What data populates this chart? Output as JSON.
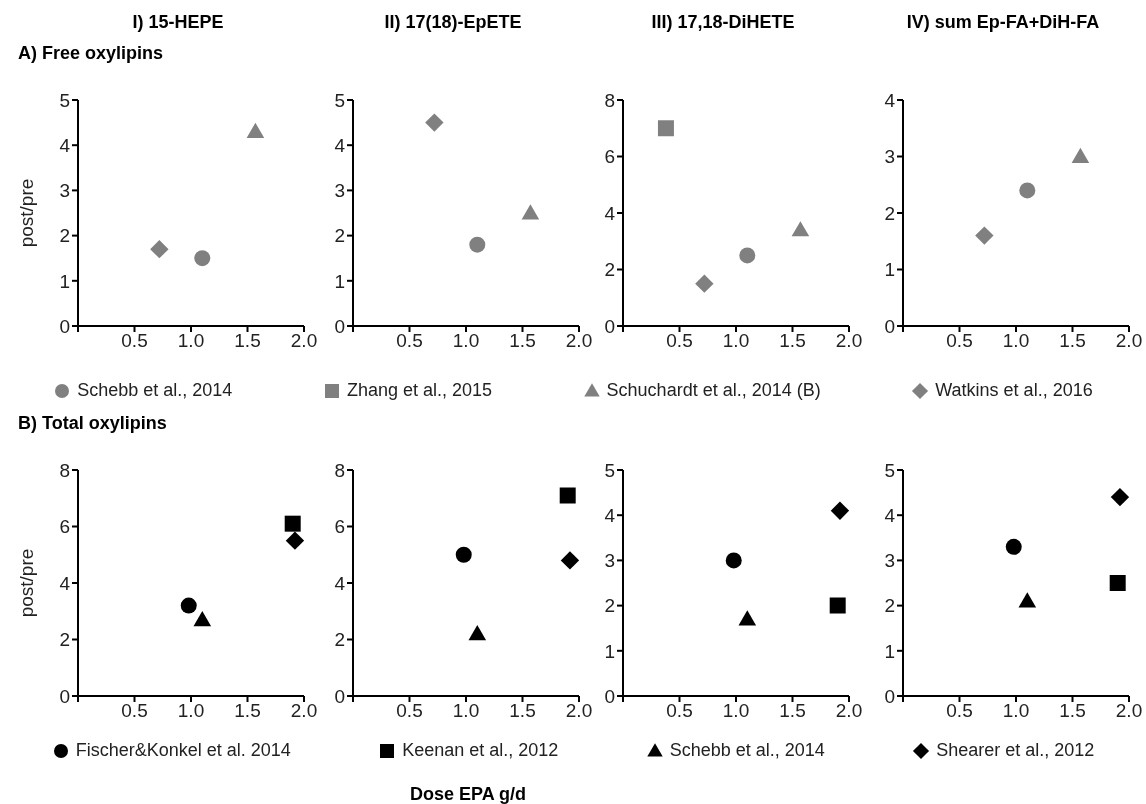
{
  "chart_data": [
    {
      "type": "scatter",
      "title": "I) 15-HEPE",
      "subtitle": "A) Free oxylipins",
      "ylabel": "post/pre",
      "xlim": [
        0,
        2
      ],
      "xticks": [
        {
          "value": 0,
          "label": null
        },
        {
          "value": 0.5,
          "label": "0.5"
        },
        {
          "value": 1,
          "label": "1.0"
        },
        {
          "value": 1.5,
          "label": "1.5"
        },
        {
          "value": 2,
          "label": "2.0"
        }
      ],
      "ylim": [
        0,
        5
      ],
      "yticks": [
        0,
        1,
        2,
        3,
        4,
        5
      ],
      "series": [
        {
          "color": "#808080",
          "marker": "circle",
          "x": [
            1.1
          ],
          "values": [
            1.5
          ]
        },
        {
          "color": "#808080",
          "marker": "triangle",
          "x": [
            1.57
          ],
          "values": [
            4.3
          ]
        },
        {
          "color": "#808080",
          "marker": "diamond",
          "x": [
            0.72
          ],
          "values": [
            1.7
          ]
        }
      ]
    },
    {
      "type": "scatter",
      "title": "II) 17(18)-EpETE",
      "xlim": [
        0,
        2
      ],
      "xticks": [
        {
          "value": 0,
          "label": null
        },
        {
          "value": 0.5,
          "label": "0.5"
        },
        {
          "value": 1,
          "label": "1.0"
        },
        {
          "value": 1.5,
          "label": "1.5"
        },
        {
          "value": 2,
          "label": "2.0"
        }
      ],
      "ylim": [
        0,
        5
      ],
      "yticks": [
        0,
        1,
        2,
        3,
        4,
        5
      ],
      "series": [
        {
          "color": "#808080",
          "marker": "circle",
          "x": [
            1.1
          ],
          "values": [
            1.8
          ]
        },
        {
          "color": "#808080",
          "marker": "triangle",
          "x": [
            1.57
          ],
          "values": [
            2.5
          ]
        },
        {
          "color": "#808080",
          "marker": "diamond",
          "x": [
            0.72
          ],
          "values": [
            4.5
          ]
        }
      ]
    },
    {
      "type": "scatter",
      "title": "III) 17,18-DiHETE",
      "legend": "bottom",
      "xlim": [
        0,
        2
      ],
      "xticks": [
        {
          "value": 0,
          "label": null
        },
        {
          "value": 0.5,
          "label": "0.5"
        },
        {
          "value": 1,
          "label": "1.0"
        },
        {
          "value": 1.5,
          "label": "1.5"
        },
        {
          "value": 2,
          "label": "2.0"
        }
      ],
      "ylim": [
        0,
        8
      ],
      "yticks": [
        0,
        2,
        4,
        6,
        8
      ],
      "series": [
        {
          "name": "Schebb et al., 2014",
          "color": "#808080",
          "marker": "circle",
          "x": [
            1.1
          ],
          "values": [
            2.5
          ]
        },
        {
          "name": "Zhang et al., 2015",
          "color": "#808080",
          "marker": "square",
          "x": [
            0.38
          ],
          "values": [
            7.0
          ]
        },
        {
          "name": "Schuchardt et al., 2014 (B)",
          "color": "#808080",
          "marker": "triangle",
          "x": [
            1.57
          ],
          "values": [
            3.4
          ]
        },
        {
          "name": "Watkins et al., 2016",
          "color": "#808080",
          "marker": "diamond",
          "x": [
            0.72
          ],
          "values": [
            1.5
          ]
        }
      ]
    },
    {
      "type": "scatter",
      "title": "IV) sum Ep-FA+DiH-FA",
      "xlim": [
        0,
        2
      ],
      "xticks": [
        {
          "value": 0,
          "label": null
        },
        {
          "value": 0.5,
          "label": "0.5"
        },
        {
          "value": 1,
          "label": "1.0"
        },
        {
          "value": 1.5,
          "label": "1.5"
        },
        {
          "value": 2,
          "label": "2.0"
        }
      ],
      "ylim": [
        0,
        4
      ],
      "yticks": [
        0,
        1,
        2,
        3,
        4
      ],
      "series": [
        {
          "color": "#808080",
          "marker": "circle",
          "x": [
            1.1
          ],
          "values": [
            2.4
          ]
        },
        {
          "color": "#808080",
          "marker": "triangle",
          "x": [
            1.57
          ],
          "values": [
            3.0
          ]
        },
        {
          "color": "#808080",
          "marker": "diamond",
          "x": [
            0.72
          ],
          "values": [
            1.6
          ]
        }
      ]
    },
    {
      "type": "scatter",
      "subtitle": "B) Total oxylipins",
      "ylabel": "post/pre",
      "legend": "bottom",
      "xlim": [
        0,
        2
      ],
      "xticks": [
        {
          "value": 0,
          "label": null
        },
        {
          "value": 0.5,
          "label": "0.5"
        },
        {
          "value": 1,
          "label": "1.0"
        },
        {
          "value": 1.5,
          "label": "1.5"
        },
        {
          "value": 2,
          "label": "2.0"
        }
      ],
      "ylim": [
        0,
        8
      ],
      "yticks": [
        0,
        2,
        4,
        6,
        8
      ],
      "series": [
        {
          "name": "Fischer&Konkel et al. 2014",
          "color": "#000000",
          "marker": "circle",
          "x": [
            0.98
          ],
          "values": [
            3.2
          ]
        },
        {
          "name": "Keenan et al., 2012",
          "color": "#000000",
          "marker": "square",
          "x": [
            1.9
          ],
          "values": [
            6.1
          ]
        },
        {
          "name": "Schebb et al., 2014",
          "color": "#000000",
          "marker": "triangle",
          "x": [
            1.1
          ],
          "values": [
            2.7
          ]
        },
        {
          "name": "Shearer et al., 2012",
          "color": "#000000",
          "marker": "diamond",
          "x": [
            1.92
          ],
          "values": [
            5.5
          ]
        }
      ]
    },
    {
      "type": "scatter",
      "xlabel": "Dose EPA g/d",
      "xlim": [
        0,
        2
      ],
      "xticks": [
        {
          "value": 0,
          "label": null
        },
        {
          "value": 0.5,
          "label": "0.5"
        },
        {
          "value": 1,
          "label": "1.0"
        },
        {
          "value": 1.5,
          "label": "1.5"
        },
        {
          "value": 2,
          "label": "2.0"
        }
      ],
      "ylim": [
        0,
        8
      ],
      "yticks": [
        0,
        2,
        4,
        6,
        8
      ],
      "series": [
        {
          "color": "#000000",
          "marker": "circle",
          "x": [
            0.98
          ],
          "values": [
            5.0
          ]
        },
        {
          "color": "#000000",
          "marker": "square",
          "x": [
            1.9
          ],
          "values": [
            7.1
          ]
        },
        {
          "color": "#000000",
          "marker": "triangle",
          "x": [
            1.1
          ],
          "values": [
            2.2
          ]
        },
        {
          "color": "#000000",
          "marker": "diamond",
          "x": [
            1.92
          ],
          "values": [
            4.8
          ]
        }
      ]
    },
    {
      "type": "scatter",
      "xlim": [
        0,
        2
      ],
      "xticks": [
        {
          "value": 0,
          "label": null
        },
        {
          "value": 0.5,
          "label": "0.5"
        },
        {
          "value": 1,
          "label": "1.0"
        },
        {
          "value": 1.5,
          "label": "1.5"
        },
        {
          "value": 2,
          "label": "2.0"
        }
      ],
      "ylim": [
        0,
        5
      ],
      "yticks": [
        0,
        1,
        2,
        3,
        4,
        5
      ],
      "series": [
        {
          "color": "#000000",
          "marker": "circle",
          "x": [
            0.98
          ],
          "values": [
            3.0
          ]
        },
        {
          "color": "#000000",
          "marker": "square",
          "x": [
            1.9
          ],
          "values": [
            2.0
          ]
        },
        {
          "color": "#000000",
          "marker": "triangle",
          "x": [
            1.1
          ],
          "values": [
            1.7
          ]
        },
        {
          "color": "#000000",
          "marker": "diamond",
          "x": [
            1.92
          ],
          "values": [
            4.1
          ]
        }
      ]
    },
    {
      "type": "scatter",
      "xlim": [
        0,
        2
      ],
      "xticks": [
        {
          "value": 0,
          "label": null
        },
        {
          "value": 0.5,
          "label": "0.5"
        },
        {
          "value": 1,
          "label": "1.0"
        },
        {
          "value": 1.5,
          "label": "1.5"
        },
        {
          "value": 2,
          "label": "2.0"
        }
      ],
      "ylim": [
        0,
        5
      ],
      "yticks": [
        0,
        1,
        2,
        3,
        4,
        5
      ],
      "series": [
        {
          "color": "#000000",
          "marker": "circle",
          "x": [
            0.98
          ],
          "values": [
            3.3
          ]
        },
        {
          "color": "#000000",
          "marker": "square",
          "x": [
            1.9
          ],
          "values": [
            2.5
          ]
        },
        {
          "color": "#000000",
          "marker": "triangle",
          "x": [
            1.1
          ],
          "values": [
            2.1
          ]
        },
        {
          "color": "#000000",
          "marker": "diamond",
          "x": [
            1.92
          ],
          "values": [
            4.4
          ]
        }
      ]
    }
  ]
}
